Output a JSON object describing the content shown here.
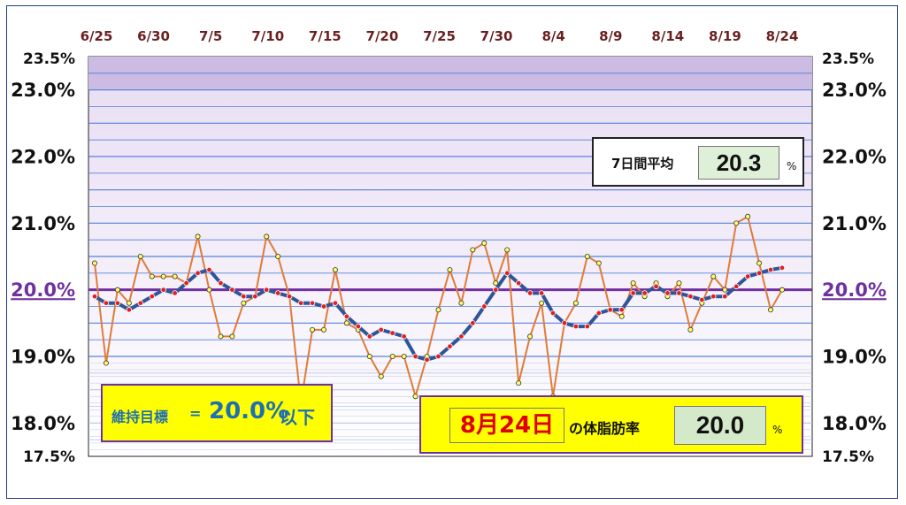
{
  "chart_data": {
    "type": "line",
    "x_tick_labels": [
      "6/25",
      "6/30",
      "7/5",
      "7/10",
      "7/15",
      "7/20",
      "7/25",
      "7/30",
      "8/4",
      "8/9",
      "8/14",
      "8/19",
      "8/24"
    ],
    "y_tick_labels": [
      "23.5%",
      "23.0%",
      "22.0%",
      "21.0%",
      "20.0%",
      "19.0%",
      "18.0%",
      "17.5%"
    ],
    "ylim": [
      17.5,
      23.5
    ],
    "target_line": 20.0,
    "series": [
      {
        "kind": "daily",
        "color": "#e07b39",
        "values": [
          20.4,
          18.9,
          20.0,
          19.8,
          20.5,
          20.2,
          20.2,
          20.2,
          20.1,
          20.8,
          20.0,
          19.3,
          19.3,
          19.8,
          19.9,
          20.8,
          20.5,
          19.9,
          18.3,
          19.4,
          19.4,
          20.3,
          19.5,
          19.4,
          19.0,
          18.7,
          19.0,
          19.0,
          18.4,
          19.0,
          19.7,
          20.3,
          19.8,
          20.6,
          20.7,
          20.1,
          20.6,
          18.6,
          19.3,
          19.8,
          18.4,
          19.5,
          19.8,
          20.5,
          20.4,
          19.7,
          19.6,
          20.1,
          19.9,
          20.1,
          19.9,
          20.1,
          19.4,
          19.8,
          20.2,
          20.0,
          21.0,
          21.1,
          20.4,
          19.7,
          20.0
        ]
      },
      {
        "kind": "7-day-average",
        "color": "#2f5597",
        "values": [
          19.9,
          19.8,
          19.8,
          19.7,
          19.8,
          19.9,
          20.0,
          19.95,
          20.1,
          20.25,
          20.3,
          20.1,
          20.0,
          19.9,
          19.9,
          20.0,
          19.95,
          19.9,
          19.8,
          19.8,
          19.75,
          19.8,
          19.6,
          19.45,
          19.3,
          19.4,
          19.35,
          19.3,
          19.0,
          18.95,
          19.0,
          19.15,
          19.3,
          19.5,
          19.75,
          20.0,
          20.25,
          20.1,
          19.95,
          19.95,
          19.65,
          19.5,
          19.45,
          19.45,
          19.65,
          19.7,
          19.7,
          19.95,
          19.95,
          20.05,
          19.95,
          19.95,
          19.9,
          19.85,
          19.9,
          19.9,
          20.05,
          20.2,
          20.25,
          20.3,
          20.33
        ]
      }
    ],
    "grid": true
  },
  "summary": {
    "avg_label": "7日間平均",
    "avg_value": "20.3",
    "avg_unit": "%",
    "target_label": "維持目標",
    "target_eq": "=",
    "target_value": "20.0%",
    "target_suffix": "以下",
    "date_value": "8月24日",
    "date_suffix": "の体脂肪率",
    "today_value": "20.0",
    "today_unit": "%"
  },
  "colors": {
    "plot_bg_top": "#d9c6ea",
    "plot_bg_bottom": "#ffffff",
    "grid": "#3a6fd8",
    "band": "#ccbbe3",
    "target_line": "#7030a0",
    "daily_line": "#e07b39",
    "daily_marker": "#ffff66",
    "avg_line": "#2f5597",
    "avg_marker": "#e02020",
    "x_tick": "#6b1f1f"
  }
}
